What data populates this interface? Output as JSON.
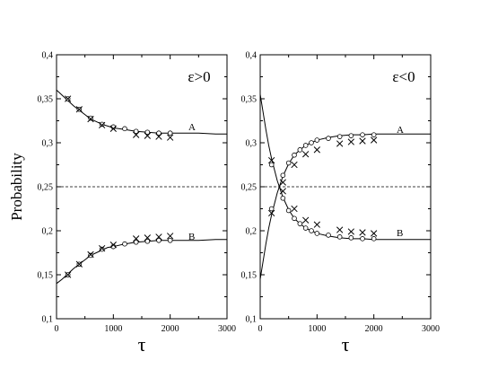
{
  "chart_data": [
    {
      "type": "scatter",
      "title": "ε>0",
      "xlabel": "τ",
      "ylabel": "Probability",
      "xlim": [
        0,
        3000
      ],
      "ylim": [
        0.1,
        0.4
      ],
      "x_ticks": [
        "0",
        "1000",
        "2000",
        "3000"
      ],
      "y_ticks": [
        "0,1",
        "0,15",
        "0,2",
        "0,25",
        "0,3",
        "0,35",
        "0,4"
      ],
      "reference_line": {
        "y": 0.25,
        "style": "dashed"
      },
      "series": [
        {
          "name": "A",
          "curve": {
            "x": [
              0,
              100,
              200,
              300,
              400,
              500,
              600,
              700,
              800,
              900,
              1000,
              1200,
              1400,
              1600,
              1800,
              2000,
              2200,
              2500,
              2800,
              3000
            ],
            "y": [
              0.36,
              0.354,
              0.348,
              0.342,
              0.337,
              0.332,
              0.327,
              0.324,
              0.321,
              0.319,
              0.317,
              0.315,
              0.313,
              0.312,
              0.311,
              0.311,
              0.311,
              0.311,
              0.31,
              0.31
            ]
          },
          "circles": {
            "x": [
              200,
              400,
              600,
              800,
              1000,
              1200,
              1400,
              1600,
              1800,
              2000
            ],
            "y": [
              0.35,
              0.338,
              0.328,
              0.321,
              0.318,
              0.316,
              0.313,
              0.312,
              0.311,
              0.311
            ]
          },
          "crosses": {
            "x": [
              200,
              400,
              600,
              800,
              1000,
              1400,
              1600,
              1800,
              2000
            ],
            "y": [
              0.35,
              0.338,
              0.327,
              0.32,
              0.316,
              0.309,
              0.308,
              0.307,
              0.306
            ]
          }
        },
        {
          "name": "B",
          "curve": {
            "x": [
              0,
              100,
              200,
              300,
              400,
              500,
              600,
              700,
              800,
              900,
              1000,
              1200,
              1400,
              1600,
              1800,
              2000,
              2200,
              2500,
              2800,
              3000
            ],
            "y": [
              0.14,
              0.145,
              0.151,
              0.157,
              0.162,
              0.167,
              0.172,
              0.175,
              0.178,
              0.181,
              0.182,
              0.185,
              0.187,
              0.188,
              0.189,
              0.189,
              0.189,
              0.189,
              0.19,
              0.19
            ]
          },
          "circles": {
            "x": [
              200,
              400,
              600,
              800,
              1000,
              1200,
              1400,
              1600,
              1800,
              2000
            ],
            "y": [
              0.15,
              0.162,
              0.172,
              0.179,
              0.182,
              0.185,
              0.187,
              0.188,
              0.189,
              0.189
            ]
          },
          "crosses": {
            "x": [
              200,
              400,
              600,
              800,
              1000,
              1400,
              1600,
              1800,
              2000
            ],
            "y": [
              0.15,
              0.162,
              0.173,
              0.18,
              0.184,
              0.191,
              0.192,
              0.193,
              0.194
            ]
          }
        }
      ]
    },
    {
      "type": "scatter",
      "title": "ε<0",
      "xlabel": "τ",
      "ylabel": "",
      "xlim": [
        0,
        3000
      ],
      "ylim": [
        0.1,
        0.4
      ],
      "x_ticks": [
        "0",
        "1000",
        "2000",
        "3000"
      ],
      "y_ticks": [
        "0,1",
        "0,15",
        "0,2",
        "0,25",
        "0,3",
        "0,35",
        "0,4"
      ],
      "reference_line": {
        "y": 0.25,
        "style": "dashed"
      },
      "series": [
        {
          "name": "A",
          "curve": {
            "x": [
              0,
              50,
              100,
              150,
              200,
              300,
              400,
              500,
              600,
              700,
              800,
              900,
              1000,
              1200,
              1400,
              1600,
              1800,
              2000,
              2200,
              2500,
              2800,
              3000
            ],
            "y": [
              0.145,
              0.165,
              0.185,
              0.203,
              0.218,
              0.243,
              0.262,
              0.276,
              0.286,
              0.292,
              0.297,
              0.3,
              0.303,
              0.306,
              0.308,
              0.309,
              0.309,
              0.31,
              0.31,
              0.31,
              0.31,
              0.31
            ]
          },
          "circles": {
            "x": [
              200,
              400,
              500,
              600,
              700,
              800,
              900,
              1000,
              1200,
              1400,
              1600,
              1800,
              2000
            ],
            "y": [
              0.225,
              0.263,
              0.277,
              0.286,
              0.292,
              0.297,
              0.3,
              0.303,
              0.305,
              0.307,
              0.308,
              0.309,
              0.309
            ]
          },
          "crosses": {
            "x": [
              200,
              400,
              600,
              800,
              1000,
              1400,
              1600,
              1800,
              2000
            ],
            "y": [
              0.22,
              0.255,
              0.275,
              0.287,
              0.292,
              0.299,
              0.301,
              0.302,
              0.303
            ]
          }
        },
        {
          "name": "B",
          "curve": {
            "x": [
              0,
              50,
              100,
              150,
              200,
              300,
              400,
              500,
              600,
              700,
              800,
              900,
              1000,
              1200,
              1400,
              1600,
              1800,
              2000,
              2200,
              2500,
              2800,
              3000
            ],
            "y": [
              0.355,
              0.335,
              0.315,
              0.297,
              0.282,
              0.257,
              0.238,
              0.224,
              0.214,
              0.208,
              0.203,
              0.2,
              0.197,
              0.194,
              0.192,
              0.191,
              0.191,
              0.19,
              0.19,
              0.19,
              0.19,
              0.19
            ]
          },
          "circles": {
            "x": [
              200,
              400,
              500,
              600,
              700,
              800,
              900,
              1000,
              1200,
              1400,
              1600,
              1800,
              2000
            ],
            "y": [
              0.275,
              0.237,
              0.223,
              0.214,
              0.208,
              0.203,
              0.2,
              0.197,
              0.195,
              0.193,
              0.192,
              0.191,
              0.191
            ]
          },
          "crosses": {
            "x": [
              200,
              400,
              600,
              800,
              1000,
              1400,
              1600,
              1800,
              2000
            ],
            "y": [
              0.28,
              0.245,
              0.225,
              0.212,
              0.207,
              0.201,
              0.199,
              0.198,
              0.197
            ]
          }
        }
      ]
    }
  ]
}
